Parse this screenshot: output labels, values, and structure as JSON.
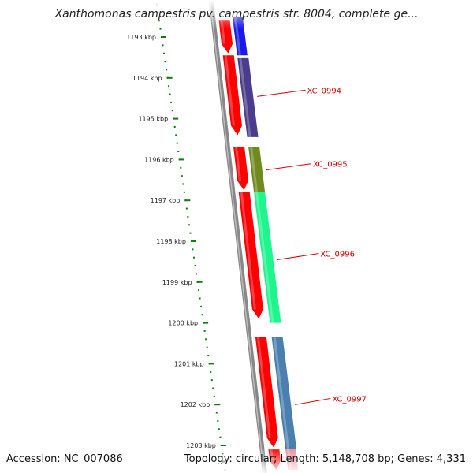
{
  "title": "Xanthomonas campestris pv. campestris str. 8004, complete ge...",
  "footer": {
    "accession": "Accession: NC_007086",
    "stats": "Topology: circular; Length: 5,148,708 bp; Genes: 4,331"
  },
  "colors": {
    "background": "#ffffff",
    "axis_dots": "#0a7d0a",
    "backbone": "#888888",
    "forward_strand": "#ff0000",
    "gene_label": "#dd0000",
    "tick_label": "#222222"
  },
  "ticks": [
    {
      "label": "1193 kbp",
      "kbp": 1193
    },
    {
      "label": "1194 kbp",
      "kbp": 1194
    },
    {
      "label": "1195 kbp",
      "kbp": 1195
    },
    {
      "label": "1196 kbp",
      "kbp": 1196
    },
    {
      "label": "1197 kbp",
      "kbp": 1197
    },
    {
      "label": "1198 kbp",
      "kbp": 1198
    },
    {
      "label": "1199 kbp",
      "kbp": 1199
    },
    {
      "label": "1200 kbp",
      "kbp": 1200
    },
    {
      "label": "1201 kbp",
      "kbp": 1201
    },
    {
      "label": "1202 kbp",
      "kbp": 1202
    },
    {
      "label": "1203 kbp",
      "kbp": 1203
    }
  ],
  "red_features": [
    {
      "start_kbp": 1192.6,
      "end_kbp": 1193.4
    },
    {
      "start_kbp": 1193.45,
      "end_kbp": 1195.4
    },
    {
      "start_kbp": 1195.7,
      "end_kbp": 1196.75
    },
    {
      "start_kbp": 1196.8,
      "end_kbp": 1199.9
    },
    {
      "start_kbp": 1200.35,
      "end_kbp": 1203.05
    },
    {
      "start_kbp": 1203.1,
      "end_kbp": 1203.6
    }
  ],
  "genes": [
    {
      "label": "XC_0994",
      "color": "#4b3c8c",
      "start_kbp": 1193.5,
      "end_kbp": 1195.45,
      "label_kbp": 1194.3
    },
    {
      "label": "XC_0995",
      "color": "#6f8a1f",
      "start_kbp": 1195.7,
      "end_kbp": 1196.8,
      "label_kbp": 1196.1
    },
    {
      "label": "XC_0996",
      "color": "#1ef58c",
      "start_kbp": 1196.8,
      "end_kbp": 1200.0,
      "label_kbp": 1198.3
    },
    {
      "label": "XC_0997",
      "color": "#4a7fb0",
      "start_kbp": 1200.35,
      "end_kbp": 1203.1,
      "label_kbp": 1201.85
    }
  ],
  "partial_genes": [
    {
      "color": "#1a1ae8",
      "start_kbp": 1192.5,
      "end_kbp": 1193.45
    },
    {
      "color": "#f08c96",
      "start_kbp": 1203.1,
      "end_kbp": 1203.6
    }
  ]
}
